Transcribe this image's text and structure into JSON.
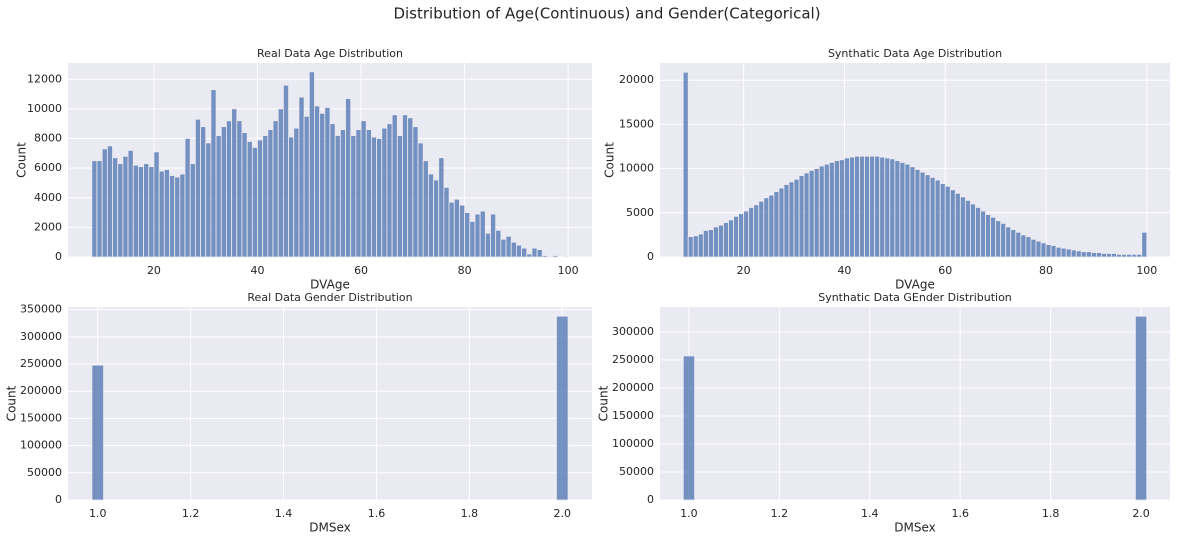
{
  "title": "Distribution of Age(Continuous) and Gender(Categorical)",
  "chart_data": [
    {
      "type": "histogram",
      "title": "Real Data Age Distribution",
      "xlabel": "DVAge",
      "ylabel": "Count",
      "color": "#4c72b0",
      "grid": true,
      "bins": [
        8,
        9,
        10,
        11,
        12,
        13,
        14,
        15,
        16,
        17,
        18,
        19,
        20,
        21,
        22,
        23,
        24,
        25,
        26,
        27,
        28,
        29,
        30,
        31,
        32,
        33,
        34,
        35,
        36,
        37,
        38,
        39,
        40,
        41,
        42,
        43,
        44,
        45,
        46,
        47,
        48,
        49,
        50,
        51,
        52,
        53,
        54,
        55,
        56,
        57,
        58,
        59,
        60,
        61,
        62,
        63,
        64,
        65,
        66,
        67,
        68,
        69,
        70,
        71,
        72,
        73,
        74,
        75,
        76,
        77,
        78,
        79,
        80,
        81,
        82,
        83,
        84,
        85,
        86,
        87,
        88,
        89,
        90,
        91,
        92,
        93,
        94,
        95,
        96,
        97,
        98,
        99,
        100
      ],
      "counts": [
        6500,
        6500,
        7300,
        7500,
        6700,
        6300,
        6800,
        7200,
        6200,
        6100,
        6300,
        6100,
        7100,
        5800,
        5900,
        5500,
        5400,
        5600,
        8000,
        6300,
        9300,
        8800,
        7700,
        11300,
        8200,
        8800,
        9200,
        10000,
        9200,
        8400,
        7800,
        7400,
        7900,
        8200,
        8600,
        9200,
        10000,
        11600,
        8100,
        8700,
        10800,
        9500,
        12500,
        10200,
        9700,
        10100,
        9000,
        8200,
        8600,
        10700,
        8200,
        8600,
        9200,
        8600,
        8100,
        8000,
        8700,
        9000,
        9600,
        8200,
        9600,
        9400,
        8800,
        7700,
        6500,
        5600,
        5200,
        6700,
        4700,
        3700,
        3900,
        3500,
        3000,
        2400,
        2900,
        3100,
        1600,
        2900,
        1800,
        1200,
        1400,
        1000,
        800,
        600,
        200,
        600,
        500,
        100,
        50,
        100,
        0,
        50
      ],
      "xlim": [
        3.4,
        104.6
      ],
      "ylim": [
        0,
        13100
      ],
      "xticks": [
        20,
        40,
        60,
        80,
        100
      ],
      "yticks": [
        0,
        2000,
        4000,
        6000,
        8000,
        10000,
        12000
      ]
    },
    {
      "type": "histogram",
      "title": "Synthatic Data Age Distribution",
      "xlabel": "DVAge",
      "ylabel": "Count",
      "color": "#4c72b0",
      "grid": true,
      "bins": [
        8,
        9,
        10,
        11,
        12,
        13,
        14,
        15,
        16,
        17,
        18,
        19,
        20,
        21,
        22,
        23,
        24,
        25,
        26,
        27,
        28,
        29,
        30,
        31,
        32,
        33,
        34,
        35,
        36,
        37,
        38,
        39,
        40,
        41,
        42,
        43,
        44,
        45,
        46,
        47,
        48,
        49,
        50,
        51,
        52,
        53,
        54,
        55,
        56,
        57,
        58,
        59,
        60,
        61,
        62,
        63,
        64,
        65,
        66,
        67,
        68,
        69,
        70,
        71,
        72,
        73,
        74,
        75,
        76,
        77,
        78,
        79,
        80,
        81,
        82,
        83,
        84,
        85,
        86,
        87,
        88,
        89,
        90,
        91,
        92,
        93,
        94,
        95,
        96,
        97,
        98,
        99,
        100
      ],
      "counts": [
        20900,
        2300,
        2400,
        2600,
        3000,
        3100,
        3400,
        3600,
        3900,
        4200,
        4600,
        4900,
        5200,
        5600,
        5900,
        6300,
        6700,
        7000,
        7400,
        7800,
        8200,
        8500,
        8800,
        9200,
        9500,
        9800,
        10000,
        10300,
        10500,
        10700,
        10900,
        11000,
        11200,
        11300,
        11400,
        11400,
        11400,
        11400,
        11400,
        11300,
        11200,
        11100,
        10900,
        10700,
        10500,
        10200,
        9900,
        9600,
        9300,
        9000,
        8700,
        8300,
        8000,
        7600,
        7200,
        6800,
        6400,
        6000,
        5600,
        5200,
        4800,
        4500,
        4100,
        3800,
        3400,
        3100,
        2800,
        2500,
        2300,
        2000,
        1800,
        1600,
        1400,
        1300,
        1100,
        1000,
        900,
        800,
        700,
        600,
        600,
        500,
        500,
        400,
        400,
        400,
        300,
        300,
        300,
        300,
        300,
        2800
      ],
      "xlim": [
        3.4,
        104.6
      ],
      "ylim": [
        0,
        21945
      ],
      "xticks": [
        20,
        40,
        60,
        80,
        100
      ],
      "yticks": [
        0,
        5000,
        10000,
        15000,
        20000
      ]
    },
    {
      "type": "histogram",
      "title": "Real Data Gender Distribution",
      "xlabel": "DMSex",
      "ylabel": "Count",
      "color": "#4c72b0",
      "grid": true,
      "bins": [
        0.9875,
        1.0125,
        1.0375,
        1.0625,
        1.0875,
        1.1125,
        1.1375,
        1.1625,
        1.1875,
        1.2125,
        1.2375,
        1.2625,
        1.2875,
        1.3125,
        1.3375,
        1.3625,
        1.3875,
        1.4125,
        1.4375,
        1.4625,
        1.4875,
        1.5125,
        1.5375,
        1.5625,
        1.5875,
        1.6125,
        1.6375,
        1.6625,
        1.6875,
        1.7125,
        1.7375,
        1.7625,
        1.7875,
        1.8125,
        1.8375,
        1.8625,
        1.8875,
        1.9125,
        1.9375,
        1.9625,
        1.9875,
        2.0125
      ],
      "counts": [
        248000,
        0,
        0,
        0,
        0,
        0,
        0,
        0,
        0,
        0,
        0,
        0,
        0,
        0,
        0,
        0,
        0,
        0,
        0,
        0,
        0,
        0,
        0,
        0,
        0,
        0,
        0,
        0,
        0,
        0,
        0,
        0,
        0,
        0,
        0,
        0,
        0,
        0,
        0,
        0,
        338000
      ],
      "xlim": [
        0.936,
        2.064
      ],
      "ylim": [
        0,
        354900
      ],
      "xticks": [
        {
          "value": 1,
          "label": "1.0"
        },
        1.2,
        1.4,
        1.6,
        1.8,
        {
          "value": 2,
          "label": "2.0"
        }
      ],
      "yticks": [
        0,
        50000,
        100000,
        150000,
        200000,
        250000,
        300000,
        350000
      ]
    },
    {
      "type": "histogram",
      "title": "Synthatic Data GEnder Distribution",
      "xlabel": "DMSex",
      "ylabel": "Count",
      "color": "#4c72b0",
      "grid": true,
      "bins": [
        0.9875,
        1.0125,
        1.0375,
        1.0625,
        1.0875,
        1.1125,
        1.1375,
        1.1625,
        1.1875,
        1.2125,
        1.2375,
        1.2625,
        1.2875,
        1.3125,
        1.3375,
        1.3625,
        1.3875,
        1.4125,
        1.4375,
        1.4625,
        1.4875,
        1.5125,
        1.5375,
        1.5625,
        1.5875,
        1.6125,
        1.6375,
        1.6625,
        1.6875,
        1.7125,
        1.7375,
        1.7625,
        1.7875,
        1.8125,
        1.8375,
        1.8625,
        1.8875,
        1.9125,
        1.9375,
        1.9625,
        1.9875,
        2.0125
      ],
      "counts": [
        257000,
        0,
        0,
        0,
        0,
        0,
        0,
        0,
        0,
        0,
        0,
        0,
        0,
        0,
        0,
        0,
        0,
        0,
        0,
        0,
        0,
        0,
        0,
        0,
        0,
        0,
        0,
        0,
        0,
        0,
        0,
        0,
        0,
        0,
        0,
        0,
        0,
        0,
        0,
        0,
        328000
      ],
      "xlim": [
        0.936,
        2.064
      ],
      "ylim": [
        0,
        344400
      ],
      "xticks": [
        {
          "value": 1,
          "label": "1.0"
        },
        1.2,
        1.4,
        1.6,
        1.8,
        {
          "value": 2,
          "label": "2.0"
        }
      ],
      "yticks": [
        0,
        50000,
        100000,
        150000,
        200000,
        250000,
        300000
      ]
    }
  ]
}
